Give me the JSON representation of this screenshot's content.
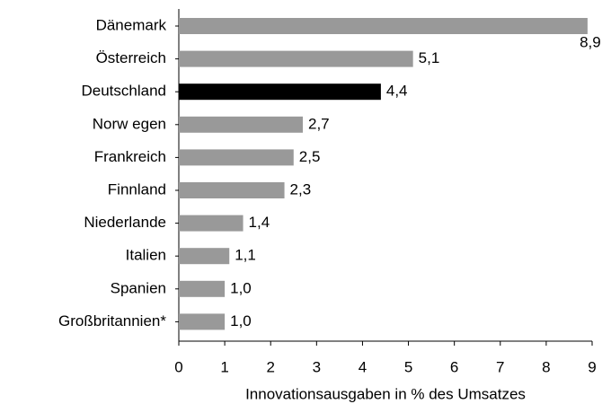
{
  "chart_data": {
    "type": "bar",
    "orientation": "horizontal",
    "categories": [
      "Dänemark",
      "Österreich",
      "Deutschland",
      "Norw egen",
      "Frankreich",
      "Finnland",
      "Niederlande",
      "Italien",
      "Spanien",
      "Großbritannien*"
    ],
    "values": [
      8.9,
      5.1,
      4.4,
      2.7,
      2.5,
      2.3,
      1.4,
      1.1,
      1.0,
      1.0
    ],
    "value_labels": [
      "8,9",
      "5,1",
      "4,4",
      "2,7",
      "2,5",
      "2,3",
      "1,4",
      "1,1",
      "1,0",
      "1,0"
    ],
    "colors": [
      "#999999",
      "#999999",
      "#000000",
      "#999999",
      "#999999",
      "#999999",
      "#999999",
      "#999999",
      "#999999",
      "#999999"
    ],
    "xlim": [
      0,
      9
    ],
    "xticks": [
      0,
      1,
      2,
      3,
      4,
      5,
      6,
      7,
      8,
      9
    ],
    "x_label": "Innovationsausgaben in % des Umsatzes"
  }
}
